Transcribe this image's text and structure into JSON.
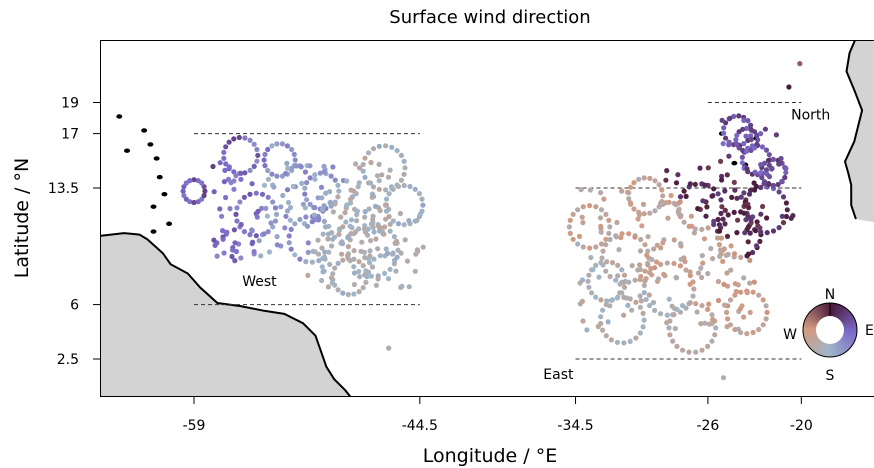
{
  "chart_data": {
    "type": "scatter",
    "title": "Surface wind direction",
    "xlabel": "Longitude / °E",
    "ylabel": "Latitude / °N",
    "xlim": [
      -65,
      -15.5
    ],
    "ylim": [
      0,
      23.5
    ],
    "xticks": [
      -59,
      -44.5,
      -34.5,
      -26,
      -20
    ],
    "xtick_labels": [
      "-59",
      "-44.5",
      "-34.5",
      "-26",
      "-20"
    ],
    "yticks": [
      2.5,
      6,
      13.5,
      17,
      19
    ],
    "ytick_labels": [
      "2.5",
      "6",
      "13.5",
      "17",
      "19"
    ],
    "regions": [
      {
        "name": "West",
        "lon_range": [
          -59,
          -44.5
        ],
        "lat_range": [
          6,
          17
        ]
      },
      {
        "name": "East",
        "lon_range": [
          -34.5,
          -20
        ],
        "lat_range": [
          2.5,
          13.5
        ]
      },
      {
        "name": "North",
        "lon_range": [
          -26,
          -20
        ],
        "lat_range": [
          13.5,
          19
        ]
      }
    ],
    "colorwheel_labels": {
      "n": "N",
      "e": "E",
      "s": "S",
      "w": "W"
    },
    "colors": {
      "N": "#4a1a3a",
      "E": "#7b68c8",
      "S": "#9fb6c8",
      "W": "#d29a80",
      "land": "#d3d3d3"
    },
    "sample_points": [
      {
        "lon": -59,
        "lat": 13.3,
        "dir": 80
      },
      {
        "lon": -56.5,
        "lat": 12,
        "dir": 100
      },
      {
        "lon": -53,
        "lat": 11.5,
        "dir": 150
      },
      {
        "lon": -49,
        "lat": 9.5,
        "dir": 200
      },
      {
        "lon": -46,
        "lat": 8,
        "dir": 190
      },
      {
        "lon": -30,
        "lat": 4,
        "dir": 210
      },
      {
        "lon": -27,
        "lat": 9,
        "dir": 240
      },
      {
        "lon": -24,
        "lat": 12.5,
        "dir": 10
      },
      {
        "lon": -22,
        "lat": 15.5,
        "dir": 60
      },
      {
        "lon": -20.8,
        "lat": 20,
        "dir": 330
      }
    ]
  }
}
